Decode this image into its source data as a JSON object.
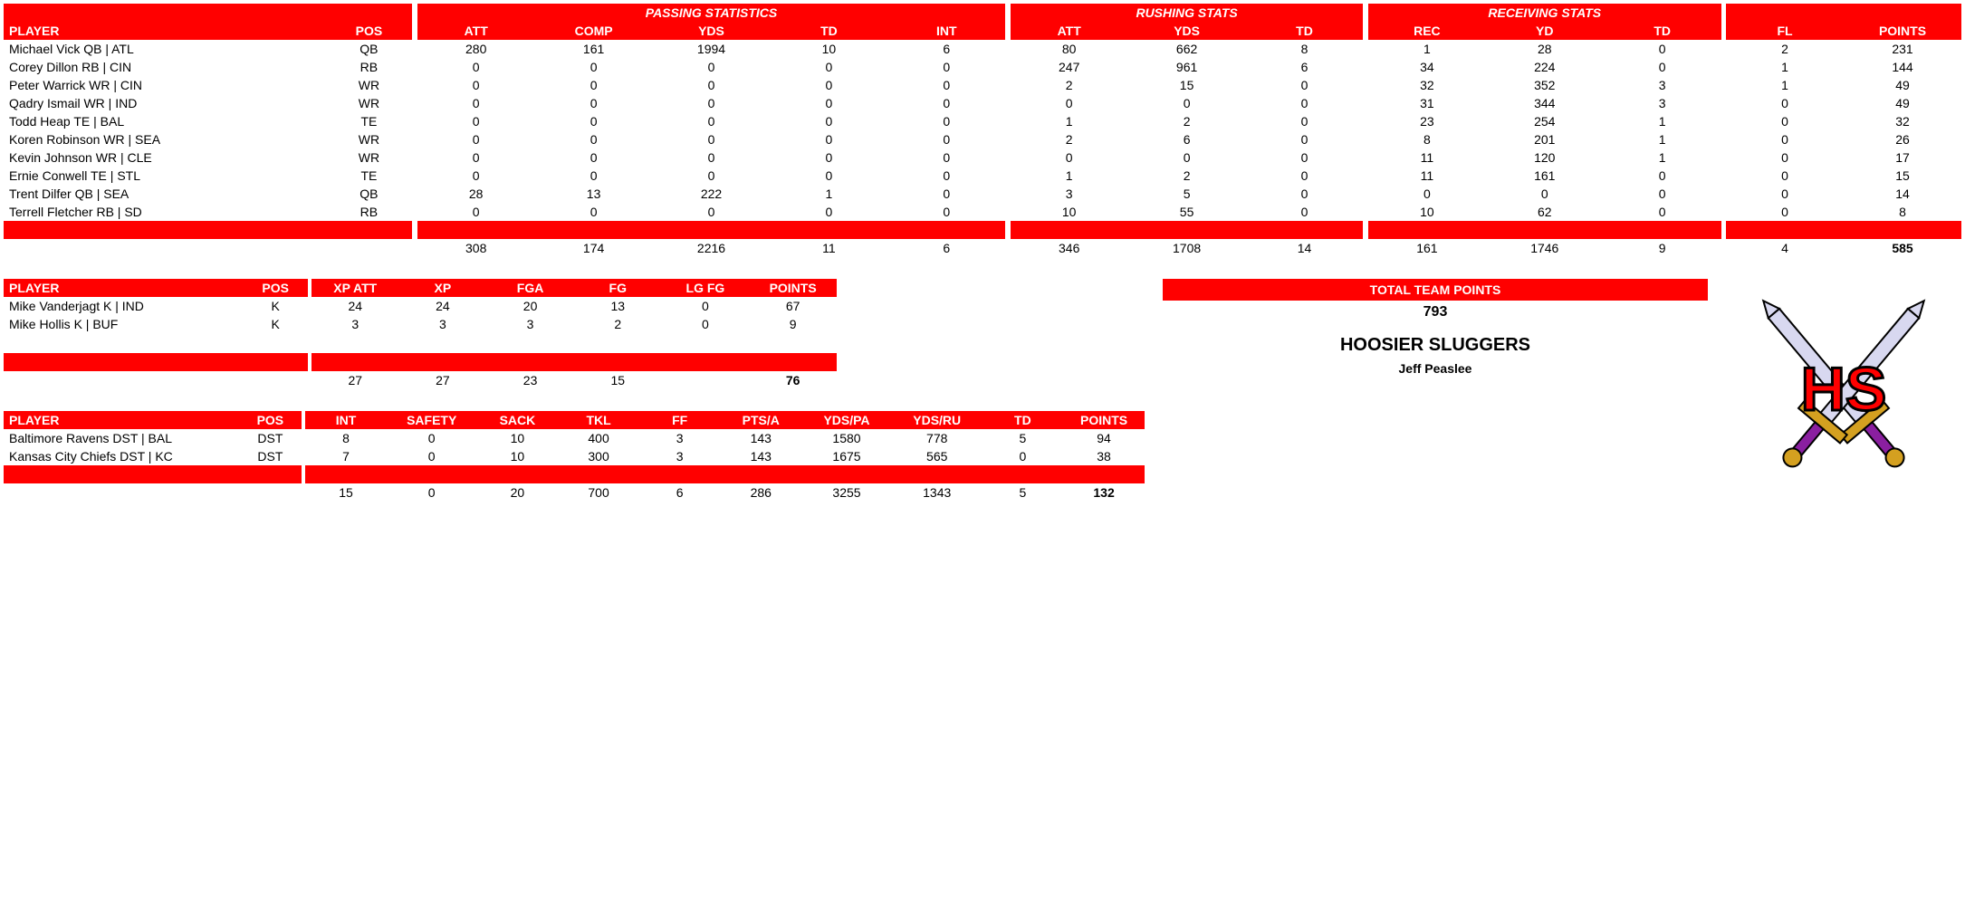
{
  "colors": {
    "header_bg": "#ff0000",
    "header_text": "#ffffff",
    "body_bg": "#ffffff",
    "body_text": "#000000"
  },
  "offense": {
    "group_headers": {
      "passing": "PASSING STATISTICS",
      "rushing": "RUSHING STATS",
      "receiving": "RECEIVING STATS"
    },
    "columns": [
      "PLAYER",
      "POS",
      "ATT",
      "COMP",
      "YDS",
      "TD",
      "INT",
      "ATT",
      "YDS",
      "TD",
      "REC",
      "YD",
      "TD",
      "FL",
      "POINTS"
    ],
    "rows": [
      [
        "Michael Vick QB | ATL",
        "QB",
        "280",
        "161",
        "1994",
        "10",
        "6",
        "80",
        "662",
        "8",
        "1",
        "28",
        "0",
        "2",
        "231"
      ],
      [
        "Corey Dillon RB | CIN",
        "RB",
        "0",
        "0",
        "0",
        "0",
        "0",
        "247",
        "961",
        "6",
        "34",
        "224",
        "0",
        "1",
        "144"
      ],
      [
        "Peter Warrick WR | CIN",
        "WR",
        "0",
        "0",
        "0",
        "0",
        "0",
        "2",
        "15",
        "0",
        "32",
        "352",
        "3",
        "1",
        "49"
      ],
      [
        "Qadry Ismail WR | IND",
        "WR",
        "0",
        "0",
        "0",
        "0",
        "0",
        "0",
        "0",
        "0",
        "31",
        "344",
        "3",
        "0",
        "49"
      ],
      [
        "Todd Heap TE | BAL",
        "TE",
        "0",
        "0",
        "0",
        "0",
        "0",
        "1",
        "2",
        "0",
        "23",
        "254",
        "1",
        "0",
        "32"
      ],
      [
        "Koren Robinson WR | SEA",
        "WR",
        "0",
        "0",
        "0",
        "0",
        "0",
        "2",
        "6",
        "0",
        "8",
        "201",
        "1",
        "0",
        "26"
      ],
      [
        "Kevin Johnson WR | CLE",
        "WR",
        "0",
        "0",
        "0",
        "0",
        "0",
        "0",
        "0",
        "0",
        "11",
        "120",
        "1",
        "0",
        "17"
      ],
      [
        "Ernie Conwell TE | STL",
        "TE",
        "0",
        "0",
        "0",
        "0",
        "0",
        "1",
        "2",
        "0",
        "11",
        "161",
        "0",
        "0",
        "15"
      ],
      [
        "Trent Dilfer QB | SEA",
        "QB",
        "28",
        "13",
        "222",
        "1",
        "0",
        "3",
        "5",
        "0",
        "0",
        "0",
        "0",
        "0",
        "14"
      ],
      [
        "Terrell Fletcher RB | SD",
        "RB",
        "0",
        "0",
        "0",
        "0",
        "0",
        "10",
        "55",
        "0",
        "10",
        "62",
        "0",
        "0",
        "8"
      ]
    ],
    "totals": [
      "",
      "",
      "308",
      "174",
      "2216",
      "11",
      "6",
      "346",
      "1708",
      "14",
      "161",
      "1746",
      "9",
      "4",
      "585"
    ]
  },
  "kickers": {
    "columns": [
      "PLAYER",
      "POS",
      "XP ATT",
      "XP",
      "FGA",
      "FG",
      "LG FG",
      "POINTS"
    ],
    "rows": [
      [
        "Mike Vanderjagt K | IND",
        "K",
        "24",
        "24",
        "20",
        "13",
        "0",
        "67"
      ],
      [
        "Mike Hollis K | BUF",
        "K",
        "3",
        "3",
        "3",
        "2",
        "0",
        "9"
      ]
    ],
    "totals": [
      "",
      "",
      "27",
      "27",
      "23",
      "15",
      "",
      "76"
    ]
  },
  "defense": {
    "columns": [
      "PLAYER",
      "POS",
      "INT",
      "SAFETY",
      "SACK",
      "TKL",
      "FF",
      "PTS/A",
      "YDS/PA",
      "YDS/RU",
      "TD",
      "POINTS"
    ],
    "rows": [
      [
        "Baltimore Ravens DST | BAL",
        "DST",
        "8",
        "0",
        "10",
        "400",
        "3",
        "143",
        "1580",
        "778",
        "5",
        "94"
      ],
      [
        "Kansas City Chiefs DST | KC",
        "DST",
        "7",
        "0",
        "10",
        "300",
        "3",
        "143",
        "1675",
        "565",
        "0",
        "38"
      ]
    ],
    "totals": [
      "",
      "",
      "15",
      "0",
      "20",
      "700",
      "6",
      "286",
      "3255",
      "1343",
      "5",
      "132"
    ]
  },
  "team": {
    "ttp_label": "TOTAL TEAM POINTS",
    "ttp_value": "793",
    "name": "HOOSIER SLUGGERS",
    "owner": "Jeff Peaslee"
  }
}
